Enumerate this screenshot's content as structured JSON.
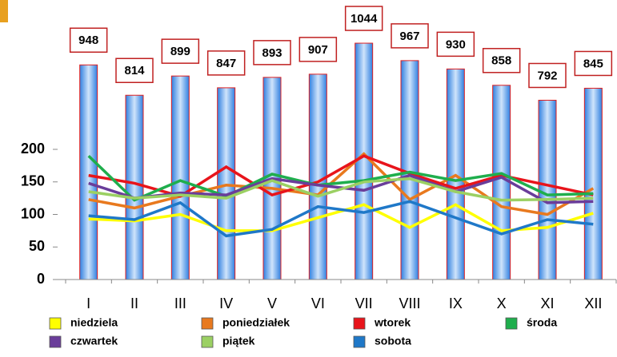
{
  "chart_data": {
    "type": "bar",
    "categories": [
      "I",
      "II",
      "III",
      "IV",
      "V",
      "VI",
      "VII",
      "VIII",
      "IX",
      "X",
      "XI",
      "XII"
    ],
    "values": [
      948,
      814,
      899,
      847,
      893,
      907,
      1044,
      967,
      930,
      858,
      792,
      845
    ],
    "bar_color": "#4a90e2",
    "y2lim": [
      0,
      1150
    ],
    "ylim": [
      0,
      400
    ],
    "yticks": [
      0,
      50,
      100,
      150,
      200
    ],
    "grid": false,
    "series": [
      {
        "name": "niedziela",
        "color": "#ffff00",
        "values": [
          93,
          90,
          100,
          75,
          75,
          95,
          115,
          80,
          115,
          75,
          80,
          102
        ]
      },
      {
        "name": "poniedziałek",
        "color": "#e8791e",
        "values": [
          123,
          110,
          128,
          145,
          140,
          130,
          193,
          123,
          160,
          112,
          100,
          140
        ]
      },
      {
        "name": "wtorek",
        "color": "#e8141b",
        "values": [
          160,
          148,
          128,
          173,
          130,
          150,
          190,
          163,
          140,
          160,
          145,
          130
        ]
      },
      {
        "name": "środa",
        "color": "#1fae4d",
        "values": [
          190,
          122,
          152,
          128,
          162,
          145,
          152,
          165,
          152,
          163,
          130,
          132
        ]
      },
      {
        "name": "czwartek",
        "color": "#6a3d9a",
        "values": [
          148,
          125,
          133,
          130,
          155,
          145,
          137,
          160,
          135,
          157,
          118,
          120
        ]
      },
      {
        "name": "piątek",
        "color": "#9bd063",
        "values": [
          135,
          125,
          130,
          125,
          152,
          128,
          150,
          155,
          135,
          122,
          123,
          125
        ]
      },
      {
        "name": "sobota",
        "color": "#1f78c8",
        "values": [
          98,
          92,
          118,
          67,
          77,
          112,
          103,
          120,
          95,
          70,
          92,
          85
        ]
      }
    ]
  }
}
